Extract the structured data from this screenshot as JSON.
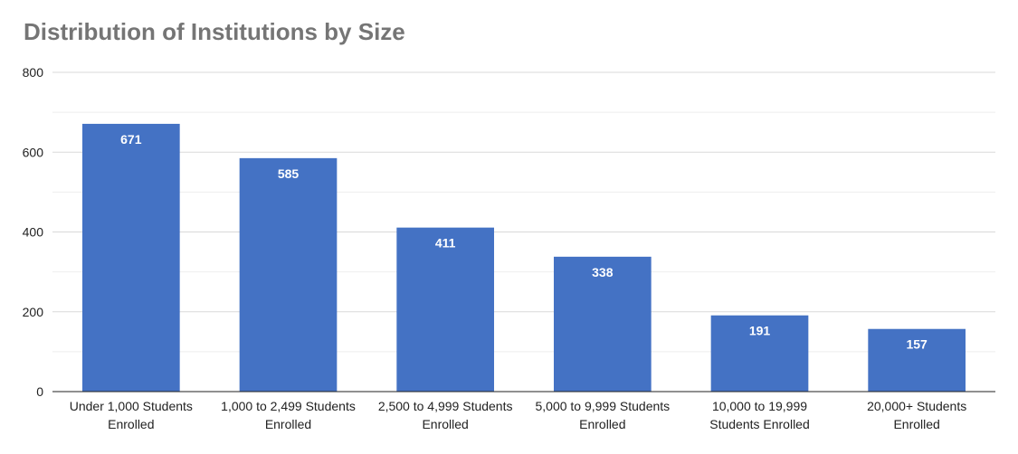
{
  "chart_data": {
    "type": "bar",
    "title": "Distribution of Institutions by Size",
    "categories": [
      [
        "Under 1,000 Students",
        "Enrolled"
      ],
      [
        "1,000 to 2,499 Students",
        "Enrolled"
      ],
      [
        "2,500 to 4,999 Students",
        "Enrolled"
      ],
      [
        "5,000 to 9,999 Students",
        "Enrolled"
      ],
      [
        "10,000 to 19,999",
        "Students Enrolled"
      ],
      [
        "20,000+ Students",
        "Enrolled"
      ]
    ],
    "values": [
      671,
      585,
      411,
      338,
      191,
      157
    ],
    "data_labels": [
      "671",
      "585",
      "411",
      "338",
      "191",
      "157"
    ],
    "ylim": [
      0,
      800
    ],
    "yticks": [
      0,
      200,
      400,
      600,
      800
    ],
    "ytick_labels": [
      "0",
      "200",
      "400",
      "600",
      "800"
    ],
    "grid": true,
    "minor_grid": true,
    "bar_color": "#4472C4",
    "grid_color": "#D9D9D9",
    "axis_color": "#222222",
    "title_color": "#757575"
  }
}
